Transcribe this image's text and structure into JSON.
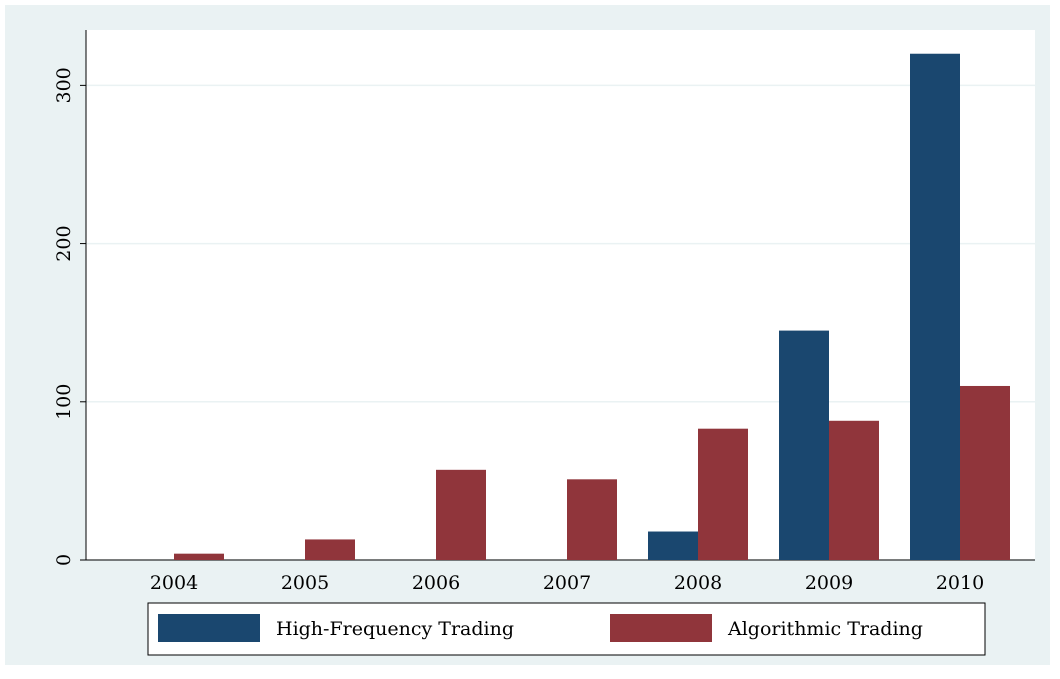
{
  "chart_data": {
    "type": "bar",
    "categories": [
      "2004",
      "2005",
      "2006",
      "2007",
      "2008",
      "2009",
      "2010"
    ],
    "series": [
      {
        "name": "High-Frequency Trading",
        "color": "#1a476f",
        "values": [
          0,
          0,
          0,
          0,
          18,
          145,
          320
        ]
      },
      {
        "name": "Algorithmic Trading",
        "color": "#90353b",
        "values": [
          4,
          13,
          57,
          51,
          83,
          88,
          110
        ]
      }
    ],
    "ylim": [
      0,
      335
    ],
    "yticks": [
      0,
      100,
      200,
      300
    ],
    "grid": true,
    "legend": "bottom"
  }
}
